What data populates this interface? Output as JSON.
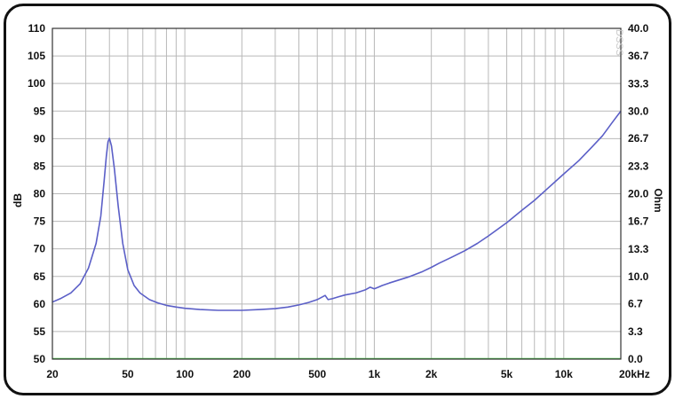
{
  "chart_data": {
    "type": "line",
    "title": "",
    "xlabel": "",
    "ylabel_left": "dB",
    "ylabel_right": "Ohm",
    "x_scale": "log",
    "xlim": [
      20,
      20000
    ],
    "ylim_left": [
      50,
      110
    ],
    "ylim_right": [
      0,
      40
    ],
    "x_tick_labels": [
      {
        "value": 20,
        "label": "20"
      },
      {
        "value": 50,
        "label": "50"
      },
      {
        "value": 100,
        "label": "100"
      },
      {
        "value": 200,
        "label": "200"
      },
      {
        "value": 500,
        "label": "500"
      },
      {
        "value": 1000,
        "label": "1k"
      },
      {
        "value": 2000,
        "label": "2k"
      },
      {
        "value": 5000,
        "label": "5k"
      },
      {
        "value": 10000,
        "label": "10k"
      },
      {
        "value": 20000,
        "label": "20kHz"
      }
    ],
    "y_left_ticks": [
      {
        "value": 110,
        "label": "110"
      },
      {
        "value": 105,
        "label": "105"
      },
      {
        "value": 100,
        "label": "100"
      },
      {
        "value": 95,
        "label": "95"
      },
      {
        "value": 90,
        "label": "90"
      },
      {
        "value": 85,
        "label": "85"
      },
      {
        "value": 80,
        "label": "80"
      },
      {
        "value": 75,
        "label": "75"
      },
      {
        "value": 70,
        "label": "70"
      },
      {
        "value": 65,
        "label": "65"
      },
      {
        "value": 60,
        "label": "60"
      },
      {
        "value": 55,
        "label": "55"
      },
      {
        "value": 50,
        "label": "50"
      }
    ],
    "y_right_ticks": [
      {
        "value": 40,
        "label": "40.0"
      },
      {
        "value": 36.7,
        "label": "36.7"
      },
      {
        "value": 33.3,
        "label": "33.3"
      },
      {
        "value": 30,
        "label": "30.0"
      },
      {
        "value": 26.7,
        "label": "26.7"
      },
      {
        "value": 23.3,
        "label": "23.3"
      },
      {
        "value": 20,
        "label": "20.0"
      },
      {
        "value": 16.7,
        "label": "16.7"
      },
      {
        "value": 13.3,
        "label": "13.3"
      },
      {
        "value": 10,
        "label": "10.0"
      },
      {
        "value": 6.7,
        "label": "6.7"
      },
      {
        "value": 3.3,
        "label": "3.3"
      },
      {
        "value": 0,
        "label": "0.0"
      }
    ],
    "grid": true,
    "watermark": "DSSS",
    "series": [
      {
        "axis": "right",
        "color": "#5b5fc7",
        "x": [
          20,
          22,
          25,
          28,
          31,
          34,
          36,
          37.5,
          38.5,
          39.3,
          40,
          41,
          42.5,
          44.5,
          47,
          50,
          54,
          58,
          65,
          72,
          80,
          90,
          100,
          120,
          150,
          200,
          250,
          300,
          350,
          400,
          450,
          500,
          530,
          550,
          570,
          600,
          650,
          700,
          800,
          900,
          950,
          1000,
          1050,
          1100,
          1200,
          1500,
          1800,
          2000,
          2200,
          2500,
          3000,
          3500,
          4000,
          5000,
          6000,
          7000,
          8000,
          10000,
          12000,
          14000,
          16000,
          18000,
          20000
        ],
        "y": [
          6.9,
          7.3,
          8.0,
          9.1,
          11.0,
          14.0,
          17.3,
          21.5,
          24.5,
          26.3,
          26.7,
          25.8,
          23.0,
          18.5,
          14.0,
          10.8,
          8.9,
          8.0,
          7.2,
          6.8,
          6.5,
          6.3,
          6.15,
          6.0,
          5.9,
          5.9,
          6.0,
          6.1,
          6.3,
          6.55,
          6.85,
          7.2,
          7.5,
          7.7,
          7.2,
          7.3,
          7.55,
          7.75,
          8.0,
          8.4,
          8.7,
          8.5,
          8.7,
          8.9,
          9.2,
          9.9,
          10.6,
          11.1,
          11.6,
          12.2,
          13.1,
          14.0,
          14.9,
          16.5,
          18.0,
          19.2,
          20.4,
          22.4,
          24.0,
          25.6,
          27.0,
          28.6,
          30.0
        ]
      },
      {
        "axis": "left",
        "color": "#55cc55",
        "x": [
          20,
          20000
        ],
        "y": [
          50.1,
          50.1
        ]
      }
    ]
  }
}
